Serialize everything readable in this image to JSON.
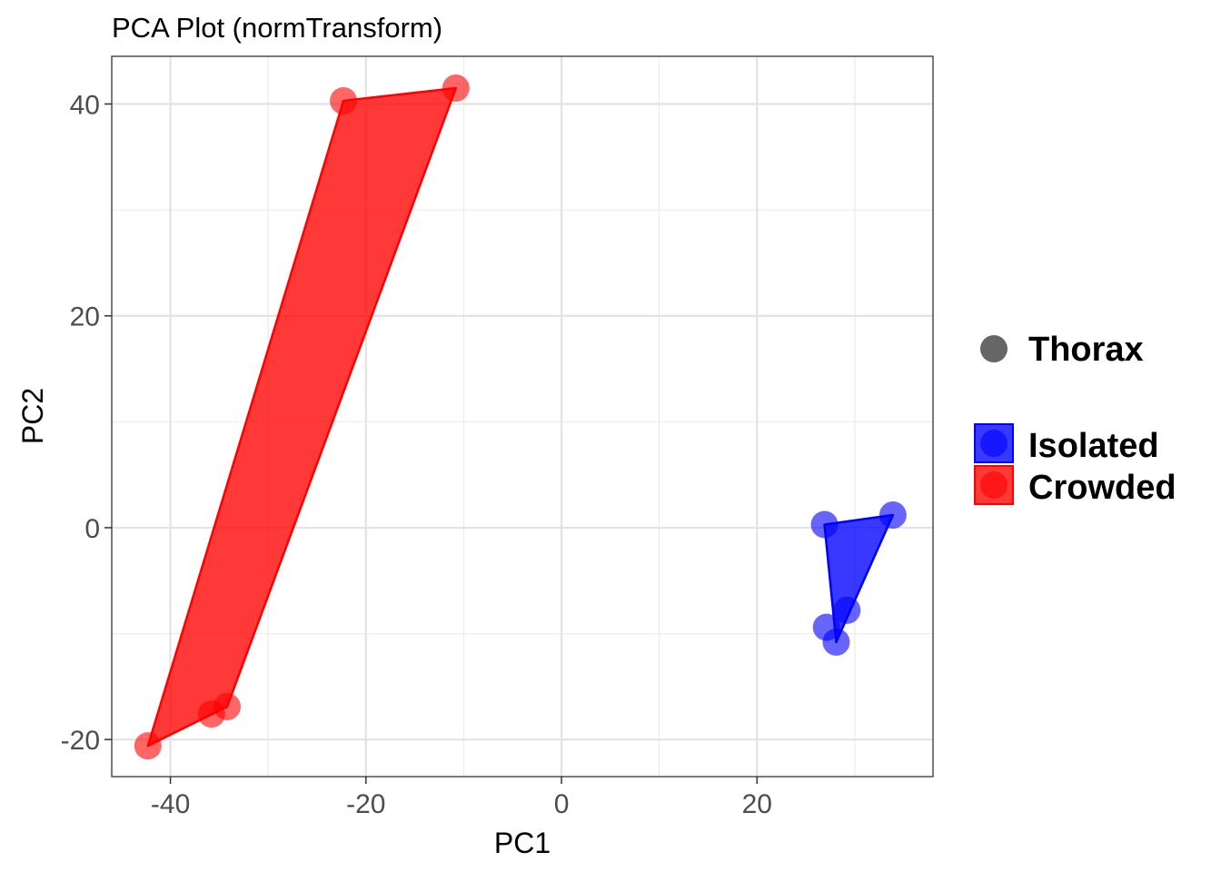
{
  "chart_data": {
    "type": "scatter",
    "title": "PCA Plot (normTransform)",
    "xlabel": "PC1",
    "ylabel": "PC2",
    "xlim": [
      -46,
      38
    ],
    "ylim": [
      -23.5,
      44.5
    ],
    "x_ticks": [
      -40,
      -20,
      0,
      20
    ],
    "x_tick_labels": [
      "-40",
      "-20",
      "0",
      "20"
    ],
    "y_ticks": [
      -20,
      0,
      20,
      40
    ],
    "y_tick_labels": [
      "-20",
      "0",
      "20",
      "40"
    ],
    "grid": true,
    "legend_position": "right",
    "shape_legend": {
      "label": "Thorax",
      "color": "#666666"
    },
    "series": [
      {
        "name": "Isolated",
        "color": "#0000ff",
        "points": [
          {
            "x": 26.9,
            "y": 0.3
          },
          {
            "x": 33.9,
            "y": 1.2
          },
          {
            "x": 29.2,
            "y": -7.8
          },
          {
            "x": 27.1,
            "y": -9.4
          },
          {
            "x": 28.1,
            "y": -10.8
          }
        ],
        "hull": [
          [
            26.9,
            0.3
          ],
          [
            33.9,
            1.2
          ],
          [
            28.1,
            -10.8
          ]
        ]
      },
      {
        "name": "Crowded",
        "color": "#ff0000",
        "points": [
          {
            "x": -22.3,
            "y": 40.3
          },
          {
            "x": -10.8,
            "y": 41.5
          },
          {
            "x": -42.3,
            "y": -20.6
          },
          {
            "x": -35.8,
            "y": -17.6
          },
          {
            "x": -34.2,
            "y": -16.9
          }
        ],
        "hull": [
          [
            -22.3,
            40.3
          ],
          [
            -10.8,
            41.5
          ],
          [
            -34.2,
            -16.9
          ],
          [
            -42.3,
            -20.6
          ]
        ]
      }
    ]
  }
}
